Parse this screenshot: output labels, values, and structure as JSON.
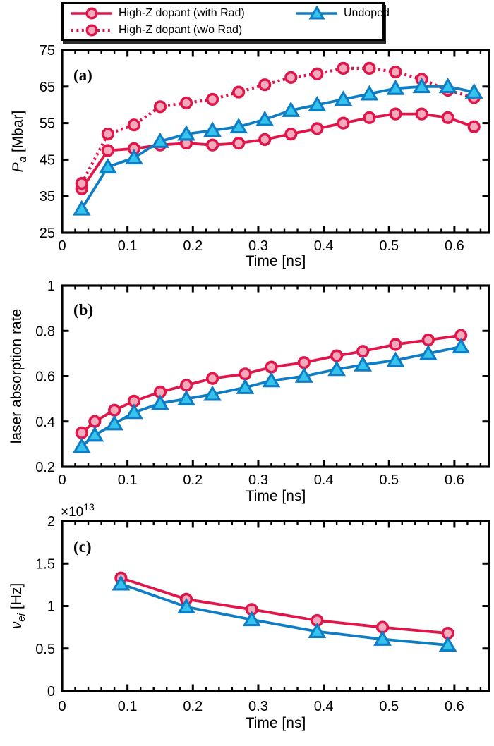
{
  "figure": {
    "background": "#ffffff",
    "axis_color": "#000000",
    "legend": {
      "items": [
        {
          "label": "High-Z dopant (with Rad)",
          "marker": "circle",
          "line": "solid",
          "line_color": "#e0164a",
          "fill_color": "#f4aabd"
        },
        {
          "label": "High-Z dopant (w/o Rad)",
          "marker": "circle",
          "line": "dotted",
          "line_color": "#e0164a",
          "fill_color": "#f4aabd"
        },
        {
          "label": "Undoped",
          "marker": "triangle",
          "line": "solid",
          "line_color": "#0f7dc4",
          "fill_color": "#33c3ec"
        }
      ]
    }
  },
  "chart_data": [
    {
      "type": "line",
      "panel_label": "(a)",
      "xlabel": "Time [ns]",
      "ylabel": {
        "pre": "P",
        "sub": "a",
        "post": " [Mbar]"
      },
      "xlim": [
        0,
        0.653
      ],
      "ylim": [
        25,
        75
      ],
      "xticks": {
        "pos": [
          0,
          0.1,
          0.2,
          0.3,
          0.4,
          0.5,
          0.6
        ],
        "labels": [
          "0",
          "0.1",
          "0.2",
          "0.3",
          "0.4",
          "0.5",
          "0.6"
        ]
      },
      "yticks": {
        "pos": [
          25,
          35,
          45,
          55,
          65,
          75
        ],
        "labels": [
          "25",
          "35",
          "45",
          "55",
          "65",
          "75"
        ]
      },
      "x_minor_step": 0.02,
      "grid": false,
      "series": [
        {
          "name": "High-Z dopant (with Rad)",
          "marker": "circle",
          "line": "solid",
          "line_color": "#e0164a",
          "fill_color": "#f4aabd",
          "x": [
            0.03,
            0.07,
            0.11,
            0.15,
            0.19,
            0.23,
            0.27,
            0.31,
            0.35,
            0.39,
            0.43,
            0.47,
            0.51,
            0.55,
            0.59,
            0.63
          ],
          "y": [
            37,
            47.5,
            48,
            49,
            49.5,
            49,
            49.5,
            50.5,
            52,
            53.5,
            55,
            56.5,
            57.5,
            57.5,
            56.5,
            54
          ]
        },
        {
          "name": "High-Z dopant (w/o Rad)",
          "marker": "circle",
          "line": "dotted",
          "line_color": "#e0164a",
          "fill_color": "#f4aabd",
          "x": [
            0.03,
            0.07,
            0.11,
            0.15,
            0.19,
            0.23,
            0.27,
            0.31,
            0.35,
            0.39,
            0.43,
            0.47,
            0.51,
            0.55,
            0.59,
            0.63
          ],
          "y": [
            38.5,
            52,
            54.5,
            59.5,
            60.5,
            61.5,
            63.5,
            65.5,
            67.5,
            68.5,
            70,
            70,
            69,
            67,
            64,
            62
          ]
        },
        {
          "name": "Undoped",
          "marker": "triangle",
          "line": "solid",
          "line_color": "#0f7dc4",
          "fill_color": "#33c3ec",
          "x": [
            0.03,
            0.07,
            0.11,
            0.15,
            0.19,
            0.23,
            0.27,
            0.31,
            0.35,
            0.39,
            0.43,
            0.47,
            0.51,
            0.55,
            0.59,
            0.63
          ],
          "y": [
            31.5,
            43,
            45.5,
            50,
            52,
            53,
            54,
            56,
            58.5,
            60,
            61.5,
            63,
            64.5,
            65,
            65,
            63.5
          ]
        }
      ]
    },
    {
      "type": "line",
      "panel_label": "(b)",
      "xlabel": "Time [ns]",
      "ylabel": {
        "pre": "laser absorption rate",
        "sub": "",
        "post": ""
      },
      "xlim": [
        0,
        0.653
      ],
      "ylim": [
        0.2,
        1
      ],
      "xticks": {
        "pos": [
          0,
          0.1,
          0.2,
          0.3,
          0.4,
          0.5,
          0.6
        ],
        "labels": [
          "0",
          "0.1",
          "0.2",
          "0.3",
          "0.4",
          "0.5",
          "0.6"
        ]
      },
      "yticks": {
        "pos": [
          0.2,
          0.4,
          0.6,
          0.8,
          1
        ],
        "labels": [
          "0.2",
          "0.4",
          "0.6",
          "0.8",
          "1"
        ]
      },
      "x_minor_step": 0.02,
      "grid": false,
      "series": [
        {
          "name": "High-Z dopant (with Rad)",
          "marker": "circle",
          "line": "solid",
          "line_color": "#e0164a",
          "fill_color": "#f4aabd",
          "x": [
            0.03,
            0.05,
            0.08,
            0.11,
            0.15,
            0.19,
            0.23,
            0.28,
            0.32,
            0.37,
            0.42,
            0.46,
            0.51,
            0.56,
            0.61
          ],
          "y": [
            0.35,
            0.4,
            0.45,
            0.49,
            0.53,
            0.56,
            0.59,
            0.61,
            0.64,
            0.66,
            0.69,
            0.71,
            0.74,
            0.76,
            0.78
          ]
        },
        {
          "name": "Undoped",
          "marker": "triangle",
          "line": "solid",
          "line_color": "#0f7dc4",
          "fill_color": "#33c3ec",
          "x": [
            0.03,
            0.05,
            0.08,
            0.11,
            0.15,
            0.19,
            0.23,
            0.28,
            0.32,
            0.37,
            0.42,
            0.46,
            0.51,
            0.56,
            0.61
          ],
          "y": [
            0.29,
            0.34,
            0.39,
            0.44,
            0.48,
            0.5,
            0.52,
            0.55,
            0.58,
            0.6,
            0.63,
            0.65,
            0.67,
            0.7,
            0.73
          ]
        }
      ]
    },
    {
      "type": "line",
      "panel_label": "(c)",
      "xlabel": "Time [ns]",
      "ylabel": {
        "pre": "ν",
        "sub": "ei",
        "post": " [Hz]"
      },
      "exp_label": {
        "prefix": "×10",
        "exp": "13"
      },
      "xlim": [
        0,
        0.653
      ],
      "ylim": [
        0,
        2
      ],
      "xticks": {
        "pos": [
          0,
          0.1,
          0.2,
          0.3,
          0.4,
          0.5,
          0.6
        ],
        "labels": [
          "0",
          "0.1",
          "0.2",
          "0.3",
          "0.4",
          "0.5",
          "0.6"
        ]
      },
      "yticks": {
        "pos": [
          0,
          0.5,
          1,
          1.5,
          2
        ],
        "labels": [
          "0",
          "0.5",
          "1",
          "1.5",
          "2"
        ]
      },
      "x_minor_step": 0.02,
      "grid": false,
      "series": [
        {
          "name": "High-Z dopant (with Rad)",
          "marker": "circle",
          "line": "solid",
          "line_color": "#e0164a",
          "fill_color": "#f4aabd",
          "x": [
            0.09,
            0.19,
            0.29,
            0.39,
            0.49,
            0.59
          ],
          "y": [
            1.33,
            1.08,
            0.96,
            0.83,
            0.75,
            0.68
          ]
        },
        {
          "name": "Undoped",
          "marker": "triangle",
          "line": "solid",
          "line_color": "#0f7dc4",
          "fill_color": "#33c3ec",
          "x": [
            0.09,
            0.19,
            0.29,
            0.39,
            0.49,
            0.59
          ],
          "y": [
            1.26,
            0.99,
            0.84,
            0.7,
            0.61,
            0.54
          ]
        }
      ]
    }
  ]
}
